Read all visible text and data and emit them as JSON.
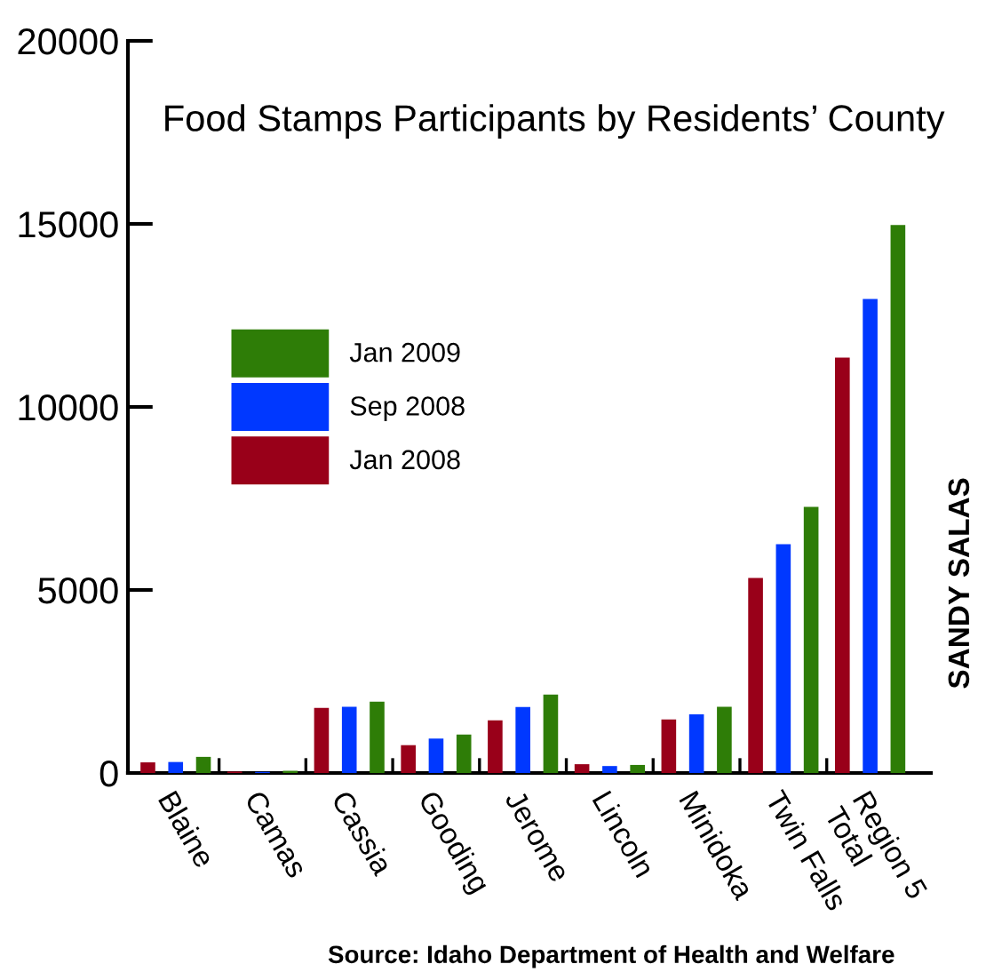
{
  "chart_data": {
    "type": "bar",
    "title": "Food Stamps Participants by Residents’ County",
    "categories": [
      "Blaine",
      "Camas",
      "Cassia",
      "Gooding",
      "Jerome",
      "Lincoln",
      "Minidoka",
      "Twin Falls",
      "Region 5\nTotal"
    ],
    "series": [
      {
        "name": "Jan 2008",
        "color": "#990019",
        "values": [
          290,
          40,
          1780,
          760,
          1440,
          240,
          1460,
          5330,
          11350
        ]
      },
      {
        "name": "Sep 2008",
        "color": "#0038ff",
        "values": [
          300,
          30,
          1810,
          940,
          1800,
          190,
          1600,
          6250,
          12950
        ]
      },
      {
        "name": "Jan 2009",
        "color": "#2e7d07",
        "values": [
          440,
          60,
          1950,
          1050,
          2140,
          220,
          1810,
          7270,
          14970
        ]
      }
    ],
    "ylim": [
      0,
      20000
    ],
    "yticks": [
      0,
      5000,
      10000,
      15000,
      20000
    ],
    "grid": false,
    "legend": "left",
    "annotations": [
      "SANDY SALAS",
      "Source: Idaho Department of Health and Welfare"
    ]
  }
}
